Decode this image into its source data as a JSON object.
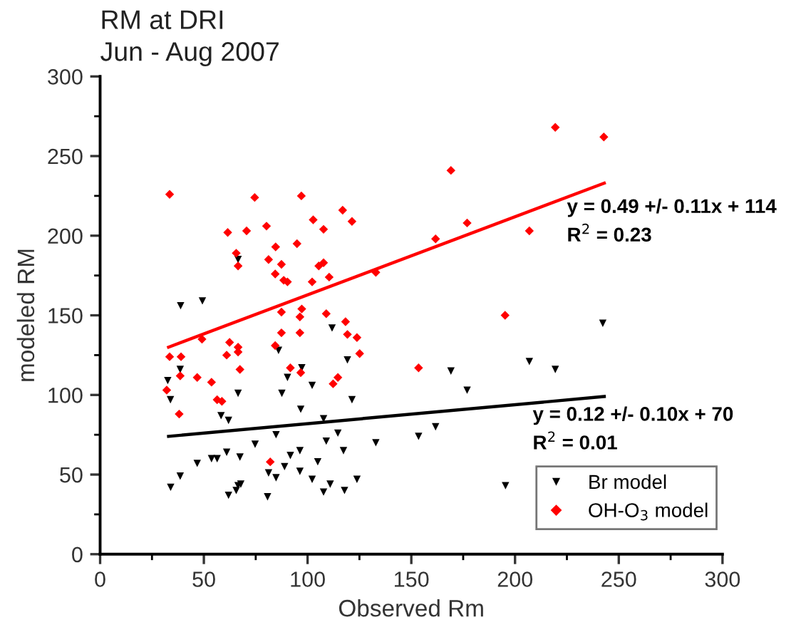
{
  "chart_data": {
    "type": "scatter",
    "title": "RM at DRI",
    "subtitle": "Jun - Aug 2007",
    "xlabel": "Observed Rm",
    "ylabel": "modeled RM",
    "xlim": [
      0,
      300
    ],
    "xticks": [
      0,
      50,
      100,
      150,
      200,
      250,
      300
    ],
    "ylim": [
      0,
      300
    ],
    "yticks": [
      0,
      50,
      100,
      150,
      200,
      250,
      300
    ],
    "grid": false,
    "legend": "bottom right",
    "series": [
      {
        "name": "Br model",
        "color": "#000000",
        "marker": "triangle",
        "x": [
          66.5,
          38.8,
          49.3,
          86,
          32.6,
          38.6,
          33.9,
          66.5,
          87.6,
          58.3,
          61.9,
          74.7,
          84.8,
          46.8,
          53.7,
          56.4,
          61,
          67.4,
          38.6,
          34,
          61.9,
          65.6,
          66.5,
          67.8,
          80.7,
          81.2,
          84.8,
          111.8,
          119.2,
          97.2,
          90.3,
          102.2,
          169.1,
          121.4,
          176.9,
          96.7,
          107.7,
          114.6,
          109,
          117.3,
          132.9,
          153.5,
          161.7,
          96.3,
          91.7,
          88.9,
          104.9,
          96.3,
          102.2,
          110.9,
          123.8,
          107.7,
          117.8,
          242.3,
          206.9,
          219.4,
          195.4
        ],
        "values": [
          185,
          156,
          159,
          128,
          109,
          116,
          97,
          101,
          101,
          87,
          84,
          69,
          75,
          57,
          60,
          60,
          64,
          61,
          49,
          42,
          37,
          40,
          43,
          44,
          36,
          51,
          48,
          142,
          122,
          117,
          111,
          106,
          115,
          97,
          103,
          91,
          85,
          76,
          71,
          65,
          70,
          74,
          80,
          65,
          62,
          55,
          58,
          52,
          47,
          44,
          47,
          39,
          40,
          145,
          121,
          116,
          43
        ]
      },
      {
        "name": "OH-O$_{3}$ model",
        "color": "#ff0000",
        "marker": "diamond",
        "x": [
          33.5,
          74.5,
          61.5,
          70.6,
          80.2,
          65.6,
          66.5,
          81.2,
          84.6,
          84.4,
          87.4,
          88.5,
          87.4,
          49.1,
          62.4,
          66.5,
          66.5,
          33.5,
          39,
          61,
          87.4,
          67.4,
          84.4,
          38.6,
          32.1,
          46.8,
          53.7,
          56.4,
          58.7,
          38.1,
          82,
          97,
          169.1,
          176.9,
          116.9,
          121.4,
          102.7,
          107.7,
          94.9,
          105.4,
          107.7,
          90.3,
          102.2,
          110.4,
          132.9,
          161.7,
          97.2,
          96.3,
          109,
          118.3,
          96.3,
          119.2,
          123.8,
          125.1,
          91.7,
          96.7,
          153.5,
          114.6,
          112.3,
          219.4,
          242.8,
          206.9,
          195.2
        ],
        "values": [
          226,
          224,
          202,
          203,
          206,
          189,
          181,
          185,
          193,
          176,
          182,
          172,
          152,
          135,
          133,
          130,
          127,
          124,
          124,
          125,
          139,
          116,
          131,
          112,
          103,
          111,
          108,
          97,
          96,
          88,
          58,
          225,
          241,
          208,
          216,
          209,
          210,
          204,
          195,
          181,
          183,
          171,
          171,
          174,
          177,
          198,
          154,
          149,
          151,
          146,
          139,
          138,
          136,
          126,
          117,
          114,
          117,
          111,
          107,
          268,
          262,
          203,
          150
        ]
      },
      {
        "type": "line",
        "color": "#ff0000",
        "x": [
          33,
          243
        ],
        "values": [
          130,
          233
        ]
      },
      {
        "type": "line",
        "color": "#000000",
        "x": [
          33,
          243
        ],
        "values": [
          74,
          99
        ]
      }
    ],
    "annotations": [
      "y = 0.49 +/- 0.11x + 114",
      "R$^{2}$ = 0.23",
      "y = 0.12 +/- 0.10x + 70",
      "R$^{2}$ = 0.01"
    ]
  }
}
